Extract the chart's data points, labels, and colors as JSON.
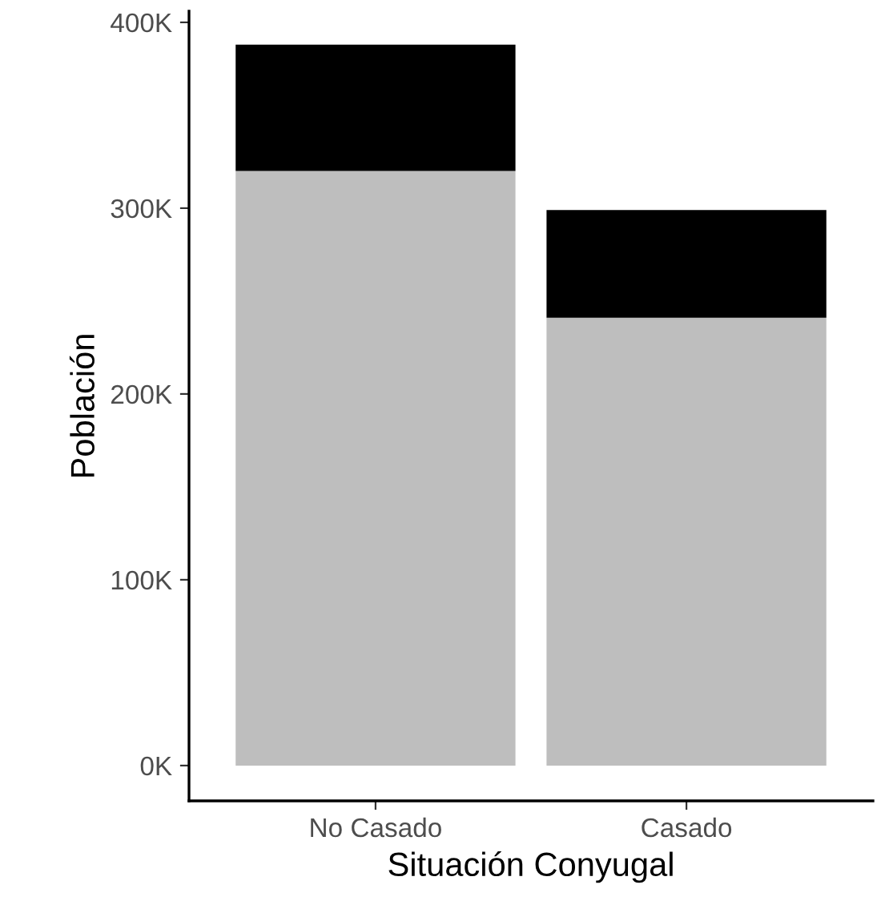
{
  "chart_data": {
    "type": "bar",
    "stacked": true,
    "xlabel": "Situación Conyugal",
    "ylabel": "Población",
    "categories": [
      "No Casado",
      "Casado"
    ],
    "series": [
      {
        "color": "#bebebe",
        "values": [
          320000,
          241000
        ]
      },
      {
        "color": "#000000",
        "values": [
          68000,
          58000
        ]
      }
    ],
    "ylim": [
      -19000,
      406000
    ],
    "yticks": [
      {
        "value": 0,
        "label": "0K"
      },
      {
        "value": 100000,
        "label": "100K"
      },
      {
        "value": 200000,
        "label": "200K"
      },
      {
        "value": 300000,
        "label": "300K"
      },
      {
        "value": 400000,
        "label": "400K"
      }
    ],
    "grid": false,
    "legend": false
  }
}
